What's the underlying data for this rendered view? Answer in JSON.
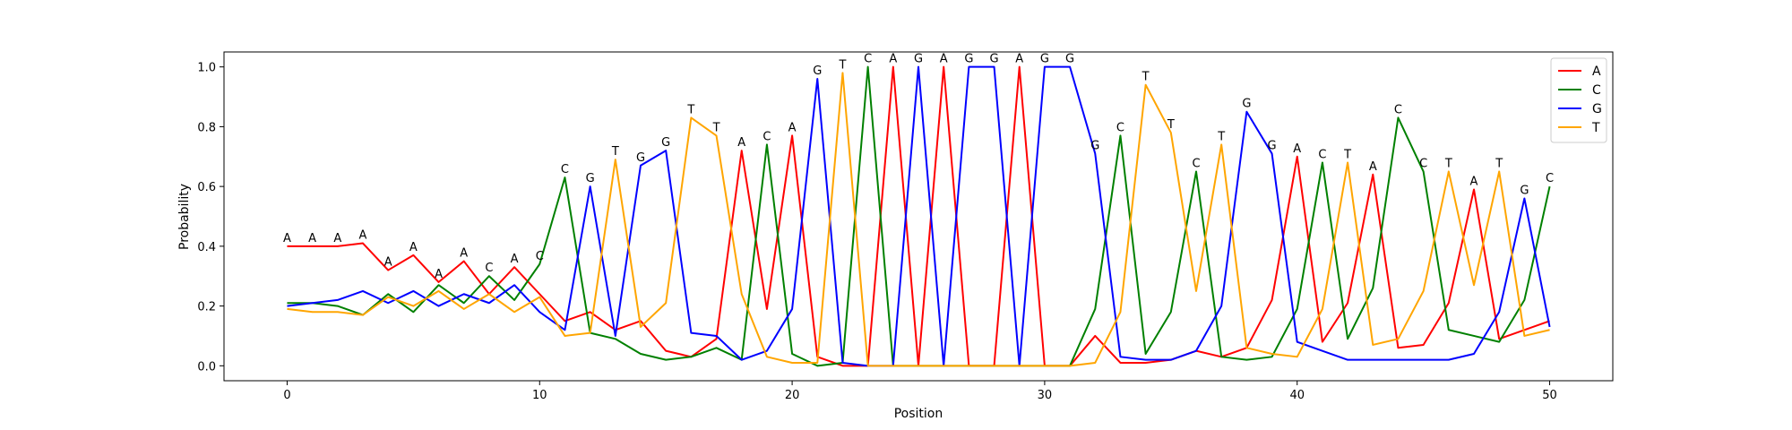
{
  "chart_data": {
    "type": "line",
    "title": "",
    "xlabel": "Position",
    "ylabel": "Probability",
    "xlim": [
      -2.5,
      52.5
    ],
    "ylim": [
      -0.05,
      1.05
    ],
    "xticks": [
      0,
      10,
      20,
      30,
      40,
      50
    ],
    "xtick_labels": [
      "0",
      "10",
      "20",
      "30",
      "40",
      "50"
    ],
    "yticks": [
      0.0,
      0.2,
      0.4,
      0.6,
      0.8,
      1.0
    ],
    "ytick_labels": [
      "0.0",
      "0.2",
      "0.4",
      "0.6",
      "0.8",
      "1.0"
    ],
    "grid": false,
    "legend_position": "top-right",
    "x": [
      0,
      1,
      2,
      3,
      4,
      5,
      6,
      7,
      8,
      9,
      10,
      11,
      12,
      13,
      14,
      15,
      16,
      17,
      18,
      19,
      20,
      21,
      22,
      23,
      24,
      25,
      26,
      27,
      28,
      29,
      30,
      31,
      32,
      33,
      34,
      35,
      36,
      37,
      38,
      39,
      40,
      41,
      42,
      43,
      44,
      45,
      46,
      47,
      48,
      49,
      50
    ],
    "series": [
      {
        "name": "A",
        "color": "#ff0000",
        "values": [
          0.4,
          0.4,
          0.4,
          0.41,
          0.32,
          0.37,
          0.28,
          0.35,
          0.24,
          0.33,
          0.24,
          0.15,
          0.18,
          0.12,
          0.15,
          0.05,
          0.03,
          0.09,
          0.72,
          0.19,
          0.77,
          0.03,
          0.0,
          0.0,
          1.0,
          0.0,
          1.0,
          0.0,
          0.0,
          1.0,
          0.0,
          0.0,
          0.1,
          0.01,
          0.01,
          0.02,
          0.05,
          0.03,
          0.06,
          0.22,
          0.7,
          0.08,
          0.21,
          0.64,
          0.06,
          0.07,
          0.21,
          0.59,
          0.09,
          0.12,
          0.15
        ]
      },
      {
        "name": "C",
        "color": "#008000",
        "values": [
          0.21,
          0.21,
          0.2,
          0.17,
          0.24,
          0.18,
          0.27,
          0.21,
          0.3,
          0.22,
          0.34,
          0.63,
          0.11,
          0.09,
          0.04,
          0.02,
          0.03,
          0.06,
          0.02,
          0.74,
          0.04,
          0.0,
          0.01,
          1.0,
          0.0,
          0.0,
          0.0,
          0.0,
          0.0,
          0.0,
          0.0,
          0.0,
          0.19,
          0.77,
          0.04,
          0.18,
          0.65,
          0.03,
          0.02,
          0.03,
          0.19,
          0.68,
          0.09,
          0.26,
          0.83,
          0.65,
          0.12,
          0.1,
          0.08,
          0.22,
          0.6
        ]
      },
      {
        "name": "G",
        "color": "#0000ff",
        "values": [
          0.2,
          0.21,
          0.22,
          0.25,
          0.21,
          0.25,
          0.2,
          0.24,
          0.21,
          0.27,
          0.18,
          0.12,
          0.6,
          0.1,
          0.67,
          0.72,
          0.11,
          0.1,
          0.02,
          0.05,
          0.19,
          0.96,
          0.01,
          0.0,
          0.0,
          1.0,
          0.0,
          1.0,
          1.0,
          0.0,
          1.0,
          1.0,
          0.71,
          0.03,
          0.02,
          0.02,
          0.05,
          0.2,
          0.85,
          0.71,
          0.08,
          0.05,
          0.02,
          0.02,
          0.02,
          0.02,
          0.02,
          0.04,
          0.18,
          0.56,
          0.13
        ]
      },
      {
        "name": "T",
        "color": "#ffa500",
        "values": [
          0.19,
          0.18,
          0.18,
          0.17,
          0.23,
          0.2,
          0.25,
          0.19,
          0.24,
          0.18,
          0.23,
          0.1,
          0.11,
          0.69,
          0.13,
          0.21,
          0.83,
          0.77,
          0.24,
          0.03,
          0.01,
          0.01,
          0.98,
          0.0,
          0.0,
          0.0,
          0.0,
          0.0,
          0.0,
          0.0,
          0.0,
          0.0,
          0.01,
          0.18,
          0.94,
          0.78,
          0.25,
          0.74,
          0.06,
          0.04,
          0.03,
          0.19,
          0.68,
          0.07,
          0.09,
          0.25,
          0.65,
          0.27,
          0.65,
          0.1,
          0.12
        ]
      }
    ],
    "annotations": [
      "A",
      "A",
      "A",
      "A",
      "A",
      "A",
      "A",
      "A",
      "C",
      "A",
      "C",
      "C",
      "G",
      "T",
      "G",
      "G",
      "T",
      "T",
      "A",
      "C",
      "A",
      "G",
      "T",
      "C",
      "A",
      "G",
      "A",
      "G",
      "G",
      "A",
      "G",
      "G",
      "G",
      "C",
      "T",
      "T",
      "C",
      "T",
      "G",
      "G",
      "A",
      "C",
      "T",
      "A",
      "C",
      "C",
      "T",
      "A",
      "T",
      "G",
      "C"
    ]
  }
}
